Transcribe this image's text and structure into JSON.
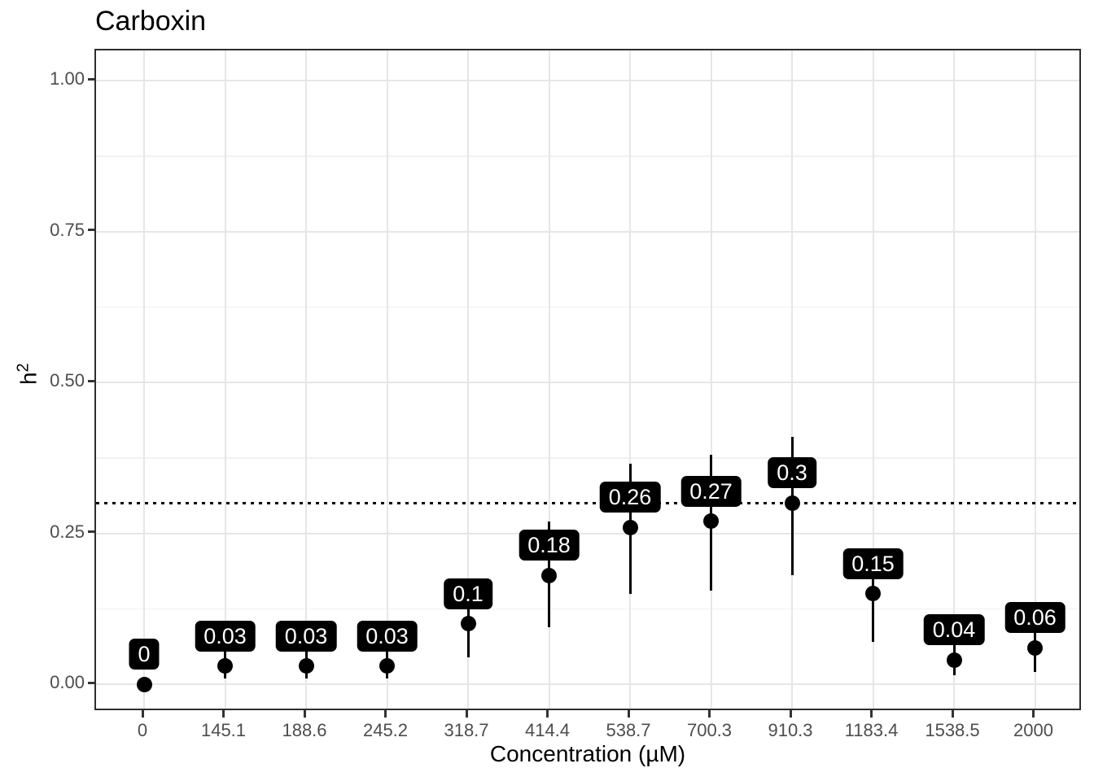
{
  "title": "Carboxin",
  "colors": {
    "background": "#ffffff",
    "title_color": "#000000",
    "axis_text": "#4d4d4d",
    "panel_border": "#2e2e2e",
    "grid_major": "#e6e6e6",
    "grid_minor": "#f1f1f1",
    "point": "#000000",
    "label_bg": "#000000",
    "label_text": "#ffffff",
    "reference_line": "#000000"
  },
  "chart_data": {
    "type": "scatter",
    "title": "Carboxin",
    "xlabel": "Concentration (µM)",
    "ylabel": "h²",
    "ylabel_base": "h",
    "ylabel_exponent": "2",
    "categories": [
      "0",
      "145.1",
      "188.6",
      "245.2",
      "318.7",
      "414.4",
      "538.7",
      "700.3",
      "910.3",
      "1183.4",
      "1538.5",
      "2000"
    ],
    "values": [
      0,
      0.03,
      0.03,
      0.03,
      0.1,
      0.18,
      0.26,
      0.27,
      0.3,
      0.15,
      0.04,
      0.06
    ],
    "point_labels": [
      "0",
      "0.03",
      "0.03",
      "0.03",
      "0.1",
      "0.18",
      "0.26",
      "0.27",
      "0.3",
      "0.15",
      "0.04",
      "0.06"
    ],
    "error_low": [
      0,
      0.01,
      0.01,
      0.01,
      0.045,
      0.095,
      0.15,
      0.155,
      0.18,
      0.07,
      0.015,
      0.02
    ],
    "error_high": [
      0,
      0.06,
      0.06,
      0.06,
      0.155,
      0.27,
      0.365,
      0.38,
      0.41,
      0.21,
      0.07,
      0.095
    ],
    "ylim": [
      0,
      1
    ],
    "y_ticks": [
      "0.00",
      "0.25",
      "0.50",
      "0.75",
      "1.00"
    ],
    "y_tick_values": [
      0,
      0.25,
      0.5,
      0.75,
      1
    ],
    "y_minor_values": [
      0.125,
      0.375,
      0.625,
      0.875
    ],
    "reference_line": {
      "y": 0.3,
      "style": "dotted"
    },
    "grid": "on",
    "legend": "none"
  }
}
